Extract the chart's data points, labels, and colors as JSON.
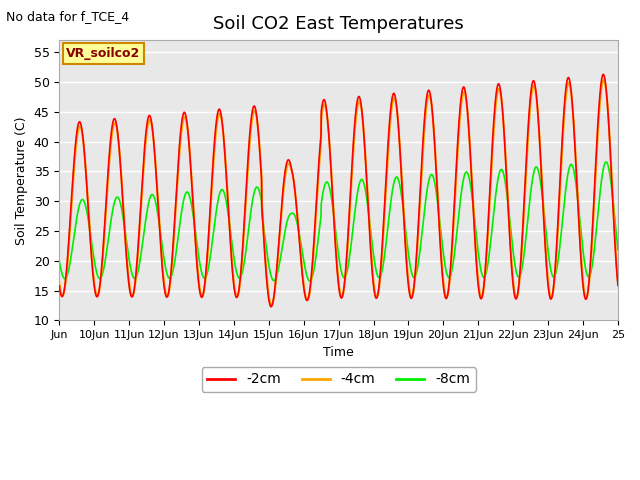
{
  "title": "Soil CO2 East Temperatures",
  "xlabel": "Time",
  "ylabel": "Soil Temperature (C)",
  "top_left_text": "No data for f_TCE_4",
  "annotation_box": "VR_soilco2",
  "ylim": [
    10,
    57
  ],
  "yticks": [
    10,
    15,
    20,
    25,
    30,
    35,
    40,
    45,
    50,
    55
  ],
  "xlim_start": 9,
  "xlim_end": 25,
  "xtick_labels": [
    "Jun",
    "10Jun",
    "11Jun",
    "12Jun",
    "13Jun",
    "14Jun",
    "15Jun",
    "16Jun",
    "17Jun",
    "18Jun",
    "19Jun",
    "20Jun",
    "21Jun",
    "22Jun",
    "23Jun",
    "24Jun",
    "25"
  ],
  "legend_labels": [
    "-2cm",
    "-4cm",
    "-8cm"
  ],
  "line_colors": [
    "#ff0000",
    "#ffa500",
    "#00ee00"
  ],
  "plot_bg_color": "#e8e8e8",
  "plot_bg_upper_color": "#f0f0f0",
  "title_fontsize": 13,
  "axis_fontsize": 9,
  "annotation_box_color": "#ffff99",
  "annotation_box_edge": "#cc8800",
  "grid_color": "#ffffff"
}
